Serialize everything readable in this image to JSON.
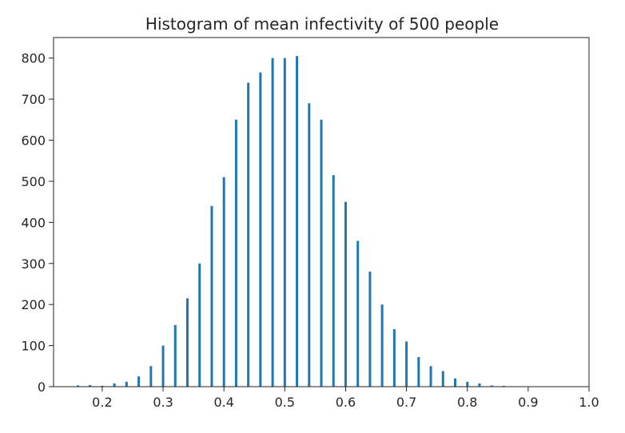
{
  "chart_data": {
    "type": "bar",
    "title": "Histogram of mean infectivity of 500 people",
    "xlabel": "",
    "ylabel": "",
    "xlim": [
      0.12,
      1.0
    ],
    "ylim": [
      0,
      850
    ],
    "xticks": [
      "0.2",
      "0.3",
      "0.4",
      "0.5",
      "0.6",
      "0.7",
      "0.8",
      "0.9",
      "1.0"
    ],
    "yticks": [
      "0",
      "100",
      "200",
      "300",
      "400",
      "500",
      "600",
      "700",
      "800"
    ],
    "grid": false,
    "legend": "none",
    "bar_color": "#1f77b4",
    "bars": [
      {
        "x": 0.16,
        "y": 3
      },
      {
        "x": 0.18,
        "y": 4
      },
      {
        "x": 0.2,
        "y": 2
      },
      {
        "x": 0.22,
        "y": 8
      },
      {
        "x": 0.24,
        "y": 12
      },
      {
        "x": 0.26,
        "y": 25
      },
      {
        "x": 0.28,
        "y": 50
      },
      {
        "x": 0.3,
        "y": 100
      },
      {
        "x": 0.32,
        "y": 150
      },
      {
        "x": 0.34,
        "y": 215
      },
      {
        "x": 0.36,
        "y": 300
      },
      {
        "x": 0.38,
        "y": 440
      },
      {
        "x": 0.4,
        "y": 510
      },
      {
        "x": 0.42,
        "y": 650
      },
      {
        "x": 0.44,
        "y": 740
      },
      {
        "x": 0.46,
        "y": 765
      },
      {
        "x": 0.48,
        "y": 800
      },
      {
        "x": 0.5,
        "y": 800
      },
      {
        "x": 0.52,
        "y": 805
      },
      {
        "x": 0.54,
        "y": 690
      },
      {
        "x": 0.56,
        "y": 650
      },
      {
        "x": 0.58,
        "y": 515
      },
      {
        "x": 0.6,
        "y": 450
      },
      {
        "x": 0.62,
        "y": 355
      },
      {
        "x": 0.64,
        "y": 280
      },
      {
        "x": 0.66,
        "y": 200
      },
      {
        "x": 0.68,
        "y": 140
      },
      {
        "x": 0.7,
        "y": 110
      },
      {
        "x": 0.72,
        "y": 72
      },
      {
        "x": 0.74,
        "y": 50
      },
      {
        "x": 0.76,
        "y": 38
      },
      {
        "x": 0.78,
        "y": 20
      },
      {
        "x": 0.8,
        "y": 12
      },
      {
        "x": 0.82,
        "y": 8
      },
      {
        "x": 0.84,
        "y": 3
      },
      {
        "x": 0.86,
        "y": 2
      }
    ]
  }
}
